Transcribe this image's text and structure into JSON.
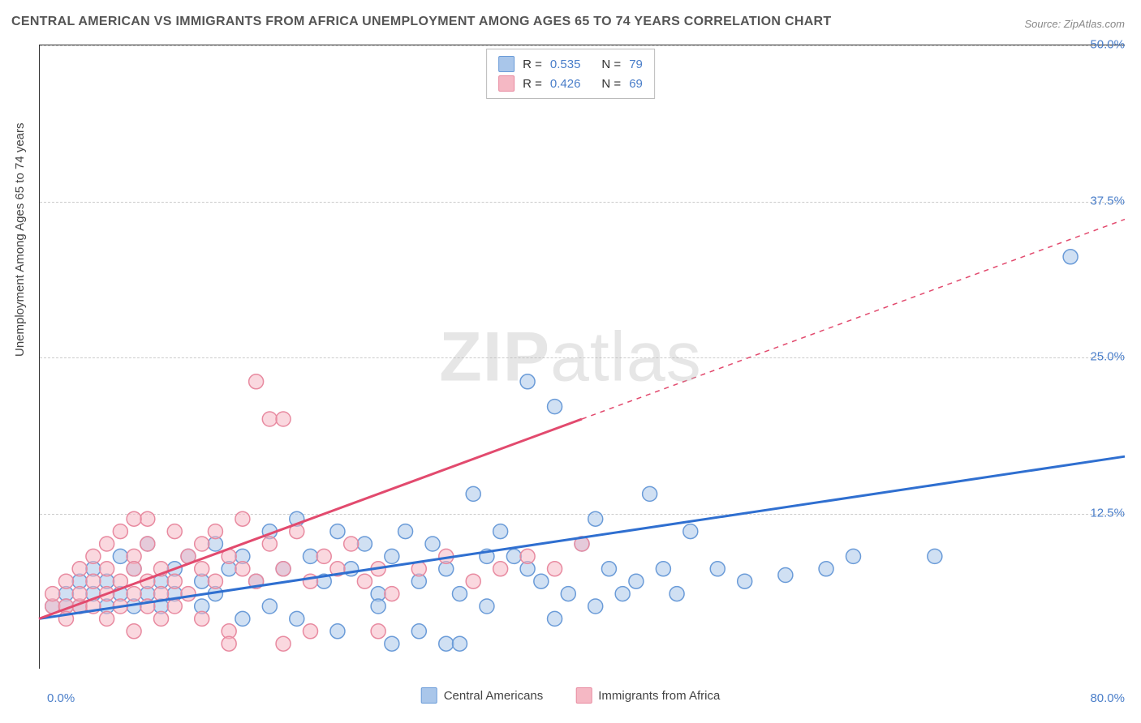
{
  "meta": {
    "title": "CENTRAL AMERICAN VS IMMIGRANTS FROM AFRICA UNEMPLOYMENT AMONG AGES 65 TO 74 YEARS CORRELATION CHART",
    "source": "Source: ZipAtlas.com",
    "watermark_text_bold": "ZIP",
    "watermark_text_rest": "atlas"
  },
  "chart": {
    "type": "scatter",
    "ylabel": "Unemployment Among Ages 65 to 74 years",
    "xlim": [
      0,
      80
    ],
    "ylim": [
      0,
      50
    ],
    "x_ticks": [
      "0.0%",
      "80.0%"
    ],
    "y_ticks": [
      {
        "value": 12.5,
        "label": "12.5%"
      },
      {
        "value": 25.0,
        "label": "25.0%"
      },
      {
        "value": 37.5,
        "label": "37.5%"
      },
      {
        "value": 50.0,
        "label": "50.0%"
      }
    ],
    "grid_color": "#cccccc",
    "axis_color": "#333333",
    "background_color": "#ffffff",
    "marker_radius": 9,
    "marker_opacity": 0.55,
    "line_width": 3,
    "series": [
      {
        "name": "Central Americans",
        "color_fill": "#a9c6ea",
        "color_stroke": "#6a9bd8",
        "line_color": "#2f6fd0",
        "R": "0.535",
        "N": "79",
        "regression": {
          "x1": 0,
          "y1": 4,
          "x2": 80,
          "y2": 17
        },
        "dash_after_x": 80,
        "points": [
          [
            1,
            5
          ],
          [
            2,
            6
          ],
          [
            2,
            5
          ],
          [
            3,
            7
          ],
          [
            3,
            5
          ],
          [
            4,
            6
          ],
          [
            4,
            8
          ],
          [
            5,
            5
          ],
          [
            5,
            7
          ],
          [
            6,
            6
          ],
          [
            6,
            9
          ],
          [
            7,
            5
          ],
          [
            7,
            8
          ],
          [
            8,
            6
          ],
          [
            8,
            10
          ],
          [
            9,
            7
          ],
          [
            9,
            5
          ],
          [
            10,
            8
          ],
          [
            10,
            6
          ],
          [
            11,
            9
          ],
          [
            12,
            7
          ],
          [
            12,
            5
          ],
          [
            13,
            10
          ],
          [
            13,
            6
          ],
          [
            14,
            8
          ],
          [
            15,
            9
          ],
          [
            15,
            4
          ],
          [
            16,
            7
          ],
          [
            17,
            11
          ],
          [
            17,
            5
          ],
          [
            18,
            8
          ],
          [
            19,
            12
          ],
          [
            19,
            4
          ],
          [
            20,
            9
          ],
          [
            21,
            7
          ],
          [
            22,
            11
          ],
          [
            22,
            3
          ],
          [
            23,
            8
          ],
          [
            24,
            10
          ],
          [
            25,
            6
          ],
          [
            25,
            5
          ],
          [
            26,
            9
          ],
          [
            27,
            11
          ],
          [
            28,
            7
          ],
          [
            28,
            3
          ],
          [
            29,
            10
          ],
          [
            30,
            8
          ],
          [
            30,
            2
          ],
          [
            31,
            6
          ],
          [
            32,
            14
          ],
          [
            33,
            5
          ],
          [
            34,
            11
          ],
          [
            35,
            9
          ],
          [
            36,
            23
          ],
          [
            37,
            7
          ],
          [
            38,
            21
          ],
          [
            38,
            4
          ],
          [
            39,
            6
          ],
          [
            40,
            10
          ],
          [
            41,
            5
          ],
          [
            42,
            8
          ],
          [
            43,
            6
          ],
          [
            44,
            7
          ],
          [
            45,
            14
          ],
          [
            46,
            8
          ],
          [
            47,
            6
          ],
          [
            48,
            11
          ],
          [
            50,
            8
          ],
          [
            52,
            7
          ],
          [
            55,
            7.5
          ],
          [
            58,
            8
          ],
          [
            60,
            9
          ],
          [
            66,
            9
          ],
          [
            76,
            33
          ],
          [
            31,
            2
          ],
          [
            26,
            2
          ],
          [
            33,
            9
          ],
          [
            36,
            8
          ],
          [
            41,
            12
          ]
        ]
      },
      {
        "name": "Immigrants from Africa",
        "color_fill": "#f5b8c4",
        "color_stroke": "#e88aa0",
        "line_color": "#e24a6e",
        "R": "0.426",
        "N": "69",
        "regression": {
          "x1": 0,
          "y1": 4,
          "x2": 80,
          "y2": 36
        },
        "dash_after_x": 40,
        "points": [
          [
            1,
            5
          ],
          [
            1,
            6
          ],
          [
            2,
            5
          ],
          [
            2,
            7
          ],
          [
            2,
            4
          ],
          [
            3,
            8
          ],
          [
            3,
            5
          ],
          [
            3,
            6
          ],
          [
            4,
            9
          ],
          [
            4,
            5
          ],
          [
            4,
            7
          ],
          [
            5,
            10
          ],
          [
            5,
            6
          ],
          [
            5,
            8
          ],
          [
            5,
            4
          ],
          [
            6,
            11
          ],
          [
            6,
            7
          ],
          [
            6,
            5
          ],
          [
            7,
            9
          ],
          [
            7,
            6
          ],
          [
            7,
            8
          ],
          [
            7,
            3
          ],
          [
            8,
            12
          ],
          [
            8,
            7
          ],
          [
            8,
            5
          ],
          [
            8,
            10
          ],
          [
            9,
            6
          ],
          [
            9,
            8
          ],
          [
            9,
            4
          ],
          [
            10,
            11
          ],
          [
            10,
            7
          ],
          [
            10,
            5
          ],
          [
            11,
            9
          ],
          [
            11,
            6
          ],
          [
            12,
            8
          ],
          [
            12,
            10
          ],
          [
            12,
            4
          ],
          [
            13,
            7
          ],
          [
            13,
            11
          ],
          [
            14,
            9
          ],
          [
            14,
            3
          ],
          [
            15,
            8
          ],
          [
            15,
            12
          ],
          [
            16,
            7
          ],
          [
            16,
            23
          ],
          [
            17,
            10
          ],
          [
            17,
            20
          ],
          [
            18,
            8
          ],
          [
            18,
            20
          ],
          [
            19,
            11
          ],
          [
            20,
            7
          ],
          [
            20,
            3
          ],
          [
            21,
            9
          ],
          [
            22,
            8
          ],
          [
            23,
            10
          ],
          [
            24,
            7
          ],
          [
            25,
            8
          ],
          [
            25,
            3
          ],
          [
            26,
            6
          ],
          [
            28,
            8
          ],
          [
            30,
            9
          ],
          [
            32,
            7
          ],
          [
            34,
            8
          ],
          [
            36,
            9
          ],
          [
            38,
            8
          ],
          [
            40,
            10
          ],
          [
            14,
            2
          ],
          [
            18,
            2
          ],
          [
            7,
            12
          ]
        ]
      }
    ],
    "legend_top_labels": {
      "R": "R =",
      "N": "N ="
    },
    "legend_bottom_labels": [
      "Central Americans",
      "Immigrants from Africa"
    ]
  }
}
